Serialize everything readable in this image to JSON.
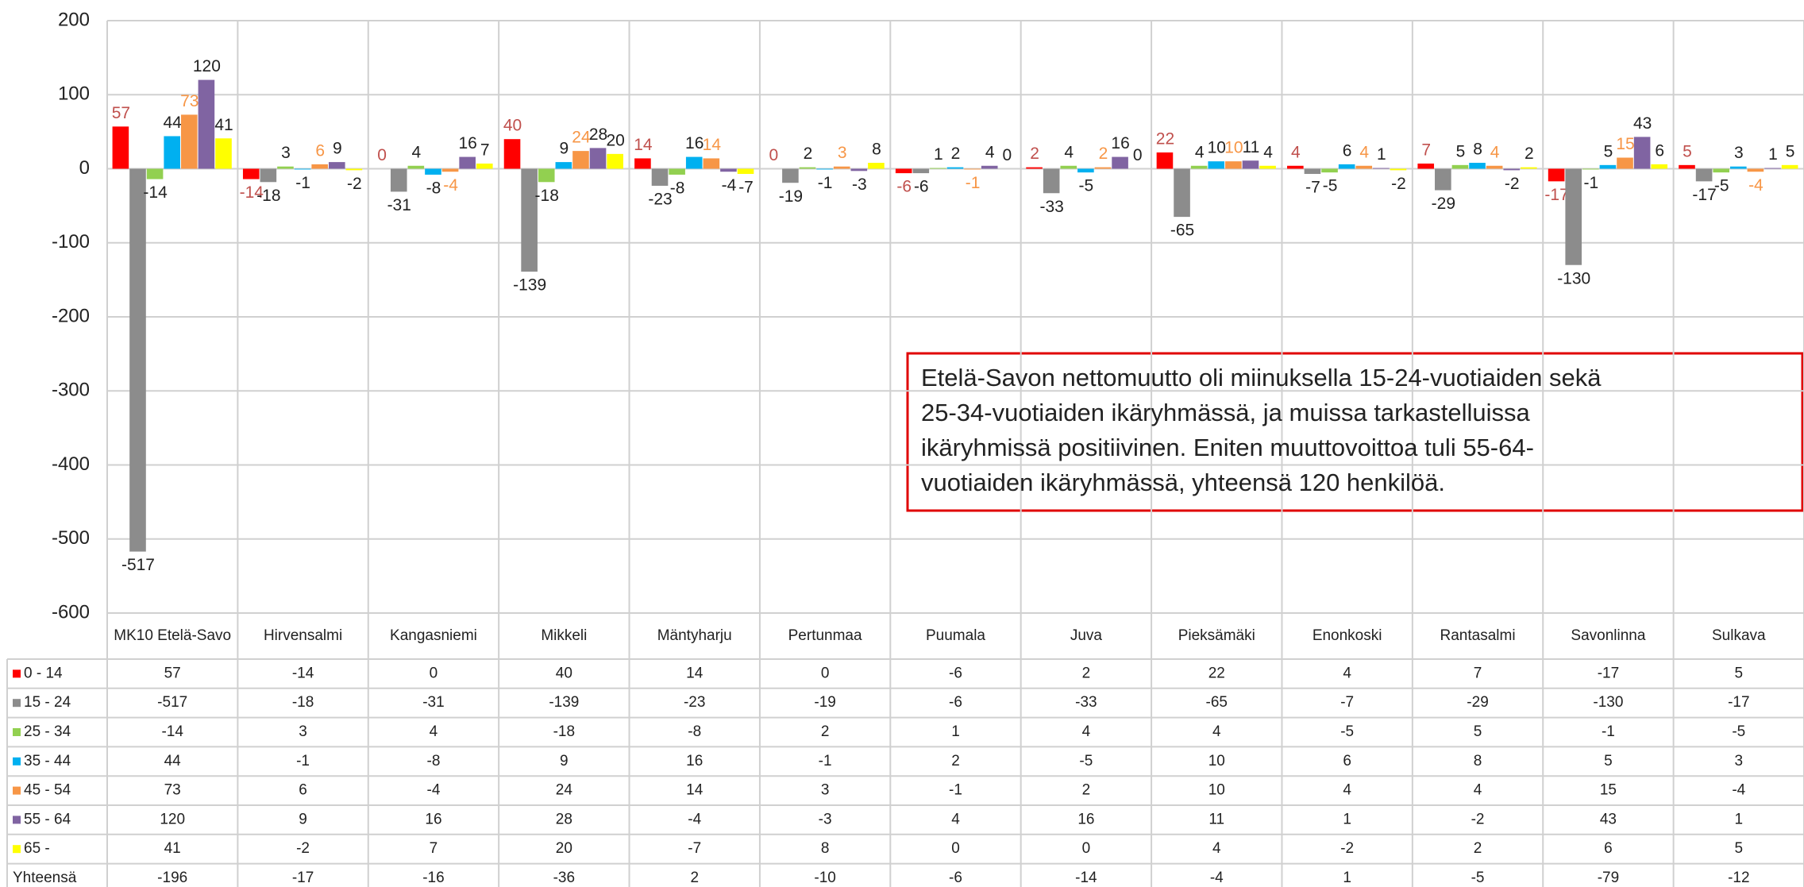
{
  "chart_data": {
    "type": "bar",
    "categories": [
      "MK10 Etelä-Savo",
      "Hirvensalmi",
      "Kangasniemi",
      "Mikkeli",
      "Mäntyharju",
      "Pertunmaa",
      "Puumala",
      "Juva",
      "Pieksämäki",
      "Enonkoski",
      "Rantasalmi",
      "Savonlinna",
      "Sulkava"
    ],
    "series": [
      {
        "name": "0 - 14",
        "color": "#ff0000",
        "label_color": "#c0504d",
        "values": [
          57,
          -14,
          0,
          40,
          14,
          0,
          -6,
          2,
          22,
          4,
          7,
          -17,
          5
        ]
      },
      {
        "name": "15 - 24",
        "color": "#8c8c8c",
        "label_color": "#222222",
        "values": [
          -517,
          -18,
          -31,
          -139,
          -23,
          -19,
          -6,
          -33,
          -65,
          -7,
          -29,
          -130,
          -17
        ]
      },
      {
        "name": "25 - 34",
        "color": "#92d050",
        "label_color": "#222222",
        "values": [
          -14,
          3,
          4,
          -18,
          -8,
          2,
          1,
          4,
          4,
          -5,
          5,
          -1,
          -5
        ]
      },
      {
        "name": "35 - 44",
        "color": "#00b0f0",
        "label_color": "#222222",
        "values": [
          44,
          -1,
          -8,
          9,
          16,
          -1,
          2,
          -5,
          10,
          6,
          8,
          5,
          3
        ]
      },
      {
        "name": "45 - 54",
        "color": "#f79646",
        "label_color": "#f79646",
        "values": [
          73,
          6,
          -4,
          24,
          14,
          3,
          -1,
          2,
          10,
          4,
          4,
          15,
          -4
        ]
      },
      {
        "name": "55 - 64",
        "color": "#8064a2",
        "label_color": "#222222",
        "values": [
          120,
          9,
          16,
          28,
          -4,
          -3,
          4,
          16,
          11,
          1,
          -2,
          43,
          1
        ]
      },
      {
        "name": "65 -",
        "color": "#ffff00",
        "label_color": "#222222",
        "values": [
          41,
          -2,
          7,
          20,
          -7,
          8,
          0,
          0,
          4,
          -2,
          2,
          6,
          5
        ]
      },
      {
        "name": "Yhteensä",
        "bars": false,
        "values": [
          -196,
          -17,
          -16,
          -36,
          2,
          -10,
          -6,
          -14,
          -4,
          1,
          -5,
          -79,
          -12
        ]
      }
    ],
    "ylim": [
      -600,
      200
    ],
    "yticks": [
      -600,
      -500,
      -400,
      -300,
      -200,
      -100,
      0,
      100,
      200
    ],
    "grid": true,
    "annotation": [
      "Etelä-Savon nettomuutto oli miinuksella 15-24-vuotiaiden sekä",
      "25-34-vuotiaiden ikäryhmässä, ja muissa tarkastelluissa",
      "ikäryhmissä positiivinen. Eniten muuttovoittoa tuli 55-64-",
      "vuotiaiden ikäryhmässä, yhteensä 120 henkilöä."
    ]
  }
}
